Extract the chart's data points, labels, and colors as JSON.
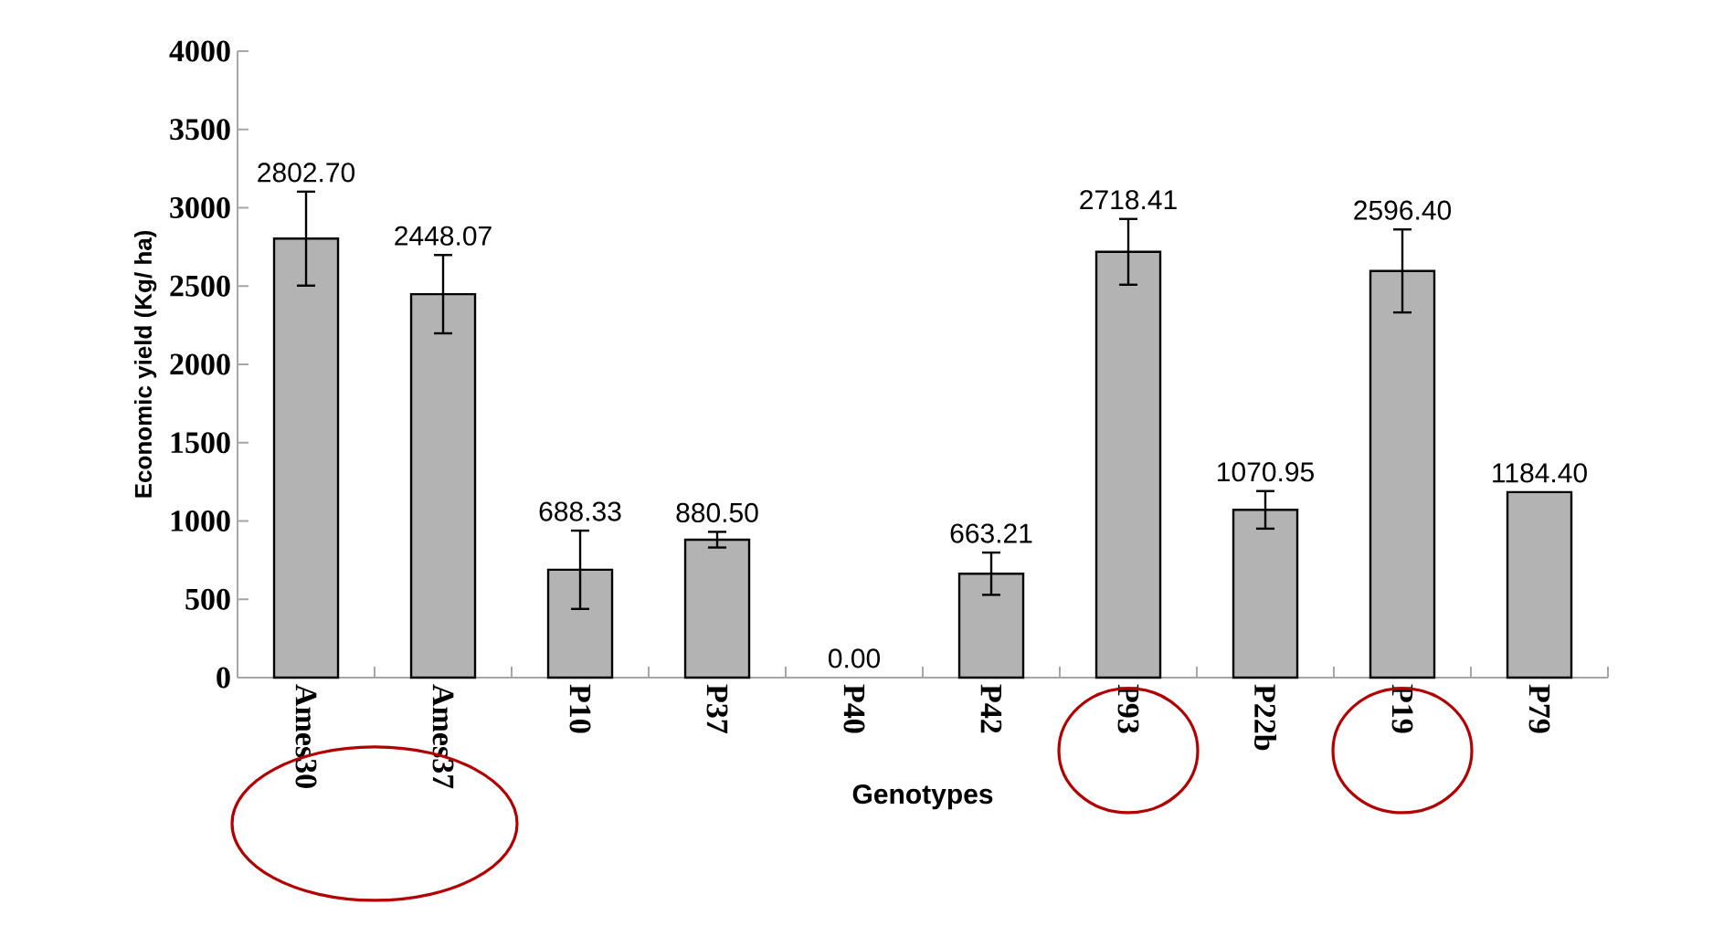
{
  "chart_data": {
    "type": "bar",
    "xlabel": "Genotypes",
    "ylabel": "Economic yield (Kg/ ha)",
    "categories": [
      "Ames30",
      "Ames37",
      "P10",
      "P37",
      "P40",
      "P42",
      "P93",
      "P22b",
      "P19",
      "P79"
    ],
    "values": [
      2802.7,
      2448.07,
      688.33,
      880.5,
      0.0,
      663.21,
      2718.41,
      1070.95,
      2596.4,
      1184.4
    ],
    "errors": [
      300,
      250,
      250,
      50,
      null,
      135,
      210,
      120,
      265,
      null
    ],
    "value_labels": [
      "2802.70",
      "2448.07",
      "688.33",
      "880.50",
      "0.00",
      "663.21",
      "2718.41",
      "1070.95",
      "2596.40",
      "1184.40"
    ],
    "color": "#b3b3b3",
    "ylim": [
      0,
      4000
    ],
    "yticks": [
      0,
      500,
      1000,
      1500,
      2000,
      2500,
      3000,
      3500,
      4000
    ]
  }
}
